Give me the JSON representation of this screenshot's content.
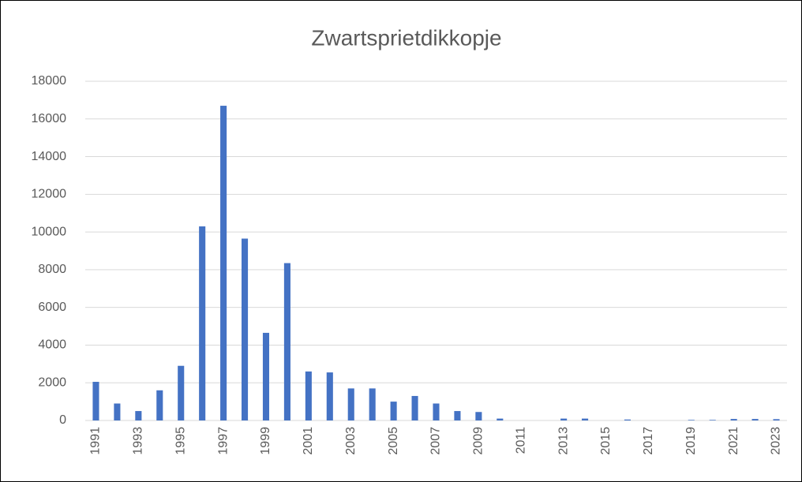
{
  "chart_data": {
    "type": "bar",
    "title": "Zwartsprietdikkopje",
    "categories": [
      "1991",
      null,
      "1993",
      null,
      "1995",
      null,
      "1997",
      null,
      "1999",
      null,
      "2001",
      null,
      "2003",
      null,
      "2005",
      null,
      "2007",
      null,
      "2009",
      null,
      "2011",
      null,
      "2013",
      null,
      "2015",
      null,
      "2017",
      null,
      "2019",
      null,
      "2021",
      null,
      "2023"
    ],
    "values": [
      2050,
      900,
      500,
      1600,
      2900,
      10300,
      16700,
      9650,
      4650,
      8350,
      2600,
      2550,
      1700,
      1700,
      1000,
      1300,
      900,
      500,
      450,
      100,
      0,
      0,
      100,
      100,
      0,
      50,
      0,
      0,
      30,
      30,
      80,
      80,
      70
    ],
    "color": "#4472c4",
    "ylim": [
      0,
      18000
    ],
    "yticks": [
      0,
      2000,
      4000,
      6000,
      8000,
      10000,
      12000,
      14000,
      16000,
      18000
    ],
    "grid": true
  }
}
